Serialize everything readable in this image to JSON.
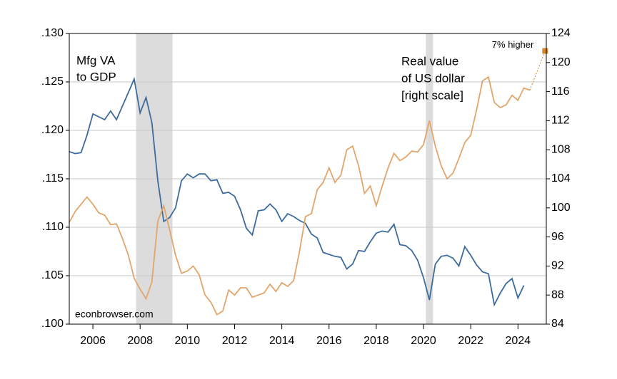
{
  "chart_data": {
    "type": "line",
    "annotations": {
      "left_series": [
        "Mfg VA",
        "to GDP"
      ],
      "right_series": [
        "Real value",
        "of US dollar",
        "[right scale]"
      ],
      "source": "econbrowser.com"
    },
    "xlim": [
      2005.0,
      2025.2
    ],
    "xticks": [
      2006,
      2008,
      2010,
      2012,
      2014,
      2016,
      2018,
      2020,
      2022,
      2024
    ],
    "ylim": [
      0.1,
      0.13
    ],
    "yticks": [
      {
        "value": 0.1,
        "label": ".100"
      },
      {
        "value": 0.105,
        "label": ".105"
      },
      {
        "value": 0.11,
        "label": ".110"
      },
      {
        "value": 0.115,
        "label": ".115"
      },
      {
        "value": 0.12,
        "label": ".120"
      },
      {
        "value": 0.125,
        "label": ".125"
      },
      {
        "value": 0.13,
        "label": ".130"
      }
    ],
    "y2lim": [
      84,
      124
    ],
    "y2ticks": [
      84,
      88,
      92,
      96,
      100,
      104,
      108,
      112,
      116,
      120,
      124
    ],
    "grid": true,
    "recessions": [
      [
        2007.83,
        2009.37
      ],
      [
        2020.1,
        2020.4
      ]
    ],
    "series": [
      {
        "name": "Mfg VA to GDP",
        "color": "#3d6c9c",
        "x": [
          2005,
          2005.25,
          2005.5,
          2005.75,
          2006,
          2006.25,
          2006.5,
          2006.75,
          2007,
          2007.25,
          2007.5,
          2007.75,
          2008,
          2008.25,
          2008.5,
          2008.75,
          2009,
          2009.25,
          2009.5,
          2009.75,
          2010,
          2010.25,
          2010.5,
          2010.75,
          2011,
          2011.25,
          2011.5,
          2011.75,
          2012,
          2012.25,
          2012.5,
          2012.75,
          2013,
          2013.25,
          2013.5,
          2013.75,
          2014,
          2014.25,
          2014.5,
          2014.75,
          2015,
          2015.25,
          2015.5,
          2015.75,
          2016,
          2016.25,
          2016.5,
          2016.75,
          2017,
          2017.25,
          2017.5,
          2017.75,
          2018,
          2018.25,
          2018.5,
          2018.75,
          2019,
          2019.25,
          2019.5,
          2019.75,
          2020,
          2020.25,
          2020.5,
          2020.75,
          2021,
          2021.25,
          2021.5,
          2021.75,
          2022,
          2022.25,
          2022.5,
          2022.75,
          2023,
          2023.25,
          2023.5,
          2023.75,
          2024,
          2024.25
        ],
        "values": [
          0.1178,
          0.1176,
          0.1177,
          0.1195,
          0.1217,
          0.1214,
          0.1211,
          0.122,
          0.1211,
          0.1225,
          0.1239,
          0.1253,
          0.1218,
          0.1234,
          0.1208,
          0.1148,
          0.1106,
          0.111,
          0.112,
          0.1148,
          0.1155,
          0.1151,
          0.1155,
          0.1155,
          0.1148,
          0.1149,
          0.1135,
          0.1136,
          0.1132,
          0.1118,
          0.1099,
          0.1092,
          0.1117,
          0.1118,
          0.1124,
          0.1118,
          0.1106,
          0.1114,
          0.1111,
          0.1107,
          0.1104,
          0.1093,
          0.1089,
          0.1074,
          0.1072,
          0.107,
          0.1069,
          0.1057,
          0.1062,
          0.1076,
          0.1075,
          0.1085,
          0.1094,
          0.1096,
          0.1095,
          0.1103,
          0.1082,
          0.1081,
          0.1076,
          0.1066,
          0.1048,
          0.1025,
          0.1062,
          0.107,
          0.1071,
          0.1068,
          0.106,
          0.108,
          0.1071,
          0.1061,
          0.1054,
          0.1052,
          0.102,
          0.1032,
          0.1042,
          0.1047,
          0.1027,
          0.104
        ]
      },
      {
        "name": "Real value of US dollar",
        "color": "#e2a56c",
        "axis": "y2",
        "x": [
          2005,
          2005.25,
          2005.5,
          2005.75,
          2006,
          2006.25,
          2006.5,
          2006.75,
          2007,
          2007.25,
          2007.5,
          2007.75,
          2008,
          2008.25,
          2008.5,
          2008.75,
          2009,
          2009.25,
          2009.5,
          2009.75,
          2010,
          2010.25,
          2010.5,
          2010.75,
          2011,
          2011.25,
          2011.5,
          2011.75,
          2012,
          2012.25,
          2012.5,
          2012.75,
          2013,
          2013.25,
          2013.5,
          2013.75,
          2014,
          2014.25,
          2014.5,
          2014.75,
          2015,
          2015.25,
          2015.5,
          2015.75,
          2016,
          2016.25,
          2016.5,
          2016.75,
          2017,
          2017.25,
          2017.5,
          2017.75,
          2018,
          2018.25,
          2018.5,
          2018.75,
          2019,
          2019.25,
          2019.5,
          2019.75,
          2020,
          2020.25,
          2020.5,
          2020.75,
          2021,
          2021.25,
          2021.5,
          2021.75,
          2022,
          2022.25,
          2022.5,
          2022.75,
          2023,
          2023.25,
          2023.5,
          2023.75,
          2024,
          2024.25,
          2024.5
        ],
        "values": [
          98,
          99.5,
          100.5,
          101.5,
          100.5,
          99.3,
          99,
          97.7,
          97.8,
          95.8,
          93.5,
          90.3,
          88.8,
          87.5,
          89.8,
          98.2,
          100.3,
          97,
          93.5,
          91,
          91.3,
          92,
          90.8,
          88,
          87,
          85.3,
          85.8,
          88.7,
          88,
          89,
          89,
          87.7,
          88,
          88.3,
          89.5,
          88.5,
          89.7,
          89.2,
          90,
          94,
          98.8,
          99.2,
          102.5,
          103.5,
          105.5,
          103.5,
          104.5,
          108,
          108.5,
          105.8,
          102,
          103,
          100.3,
          103,
          105.5,
          107.5,
          106.5,
          107,
          107.8,
          107.7,
          108.7,
          112,
          108.5,
          105.8,
          104,
          104.8,
          106.8,
          109,
          110,
          113.5,
          117.5,
          118,
          114.5,
          113.8,
          114.2,
          115.5,
          114.8,
          116.5,
          116.2
        ]
      }
    ],
    "marker": {
      "x": 2025.15,
      "value": 121.6,
      "label": "7% higher",
      "color": "#d4892e"
    }
  }
}
